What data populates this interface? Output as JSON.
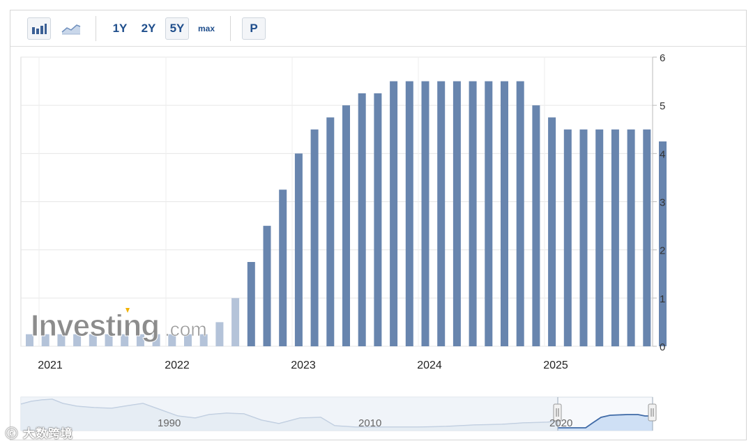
{
  "toolbar": {
    "bar_icon": "bar-chart-icon",
    "area_icon": "area-chart-icon",
    "ranges": [
      "1Y",
      "2Y",
      "5Y",
      "max"
    ],
    "selected_range": "5Y",
    "p_label": "P"
  },
  "logo": {
    "brand": "Investing",
    "suffix": ".com"
  },
  "navigator": {
    "labels": [
      "1990",
      "2010",
      "2020"
    ]
  },
  "watermark": {
    "text": "大数跨境"
  },
  "colors": {
    "bar": "#6885ae",
    "faded_bar": "#b4c3d9",
    "grid": "#e6e6e6",
    "accent": "#1f4e8c",
    "logo_dot": "#f2b200"
  },
  "chart_data": {
    "type": "bar",
    "title": "",
    "xlabel": "",
    "ylabel": "",
    "ylim": [
      0,
      6
    ],
    "yticks": [
      0,
      1,
      2,
      3,
      4,
      5,
      6
    ],
    "xticks": [
      "2021",
      "2022",
      "2023",
      "2024",
      "2025"
    ],
    "grid": true,
    "series": [
      {
        "values": [
          0.25,
          0.25,
          0.25,
          0.25,
          0.25,
          0.25,
          0.25,
          0.25,
          0.25,
          0.25,
          0.25,
          0.25,
          0.5,
          1.0,
          1.75,
          2.5,
          3.25,
          4.0,
          4.5,
          4.75,
          5.0,
          5.25,
          5.25,
          5.5,
          5.5,
          5.5,
          5.5,
          5.5,
          5.5,
          5.5,
          5.5,
          5.5,
          5.0,
          4.75,
          4.5,
          4.5,
          4.5,
          4.5,
          4.5,
          4.5,
          4.25
        ]
      }
    ]
  }
}
